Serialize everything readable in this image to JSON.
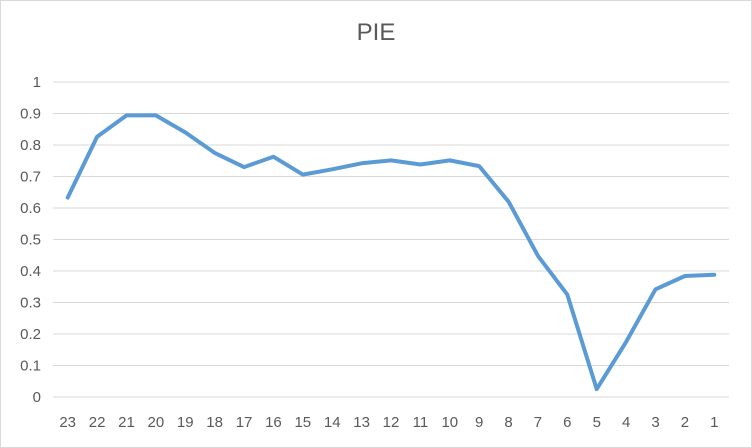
{
  "chart_data": {
    "type": "line",
    "title": "PIE",
    "xlabel": "",
    "ylabel": "",
    "x": [
      "23",
      "22",
      "21",
      "20",
      "19",
      "18",
      "17",
      "16",
      "15",
      "14",
      "13",
      "12",
      "11",
      "10",
      "9",
      "8",
      "7",
      "6",
      "5",
      "4",
      "3",
      "2",
      "1"
    ],
    "series": [
      {
        "values": [
          0.633,
          0.826,
          0.894,
          0.894,
          0.84,
          0.775,
          0.73,
          0.763,
          0.706,
          0.723,
          0.742,
          0.751,
          0.738,
          0.751,
          0.733,
          0.62,
          0.448,
          0.325,
          0.025,
          0.175,
          0.342,
          0.384,
          0.388
        ]
      }
    ],
    "y_ticks": [
      "0",
      "0.1",
      "0.2",
      "0.3",
      "0.4",
      "0.5",
      "0.6",
      "0.7",
      "0.8",
      "0.9",
      "1"
    ],
    "ylim": [
      0,
      1
    ],
    "grid": true,
    "legend": "none",
    "line_color": "#5b9bd5"
  }
}
